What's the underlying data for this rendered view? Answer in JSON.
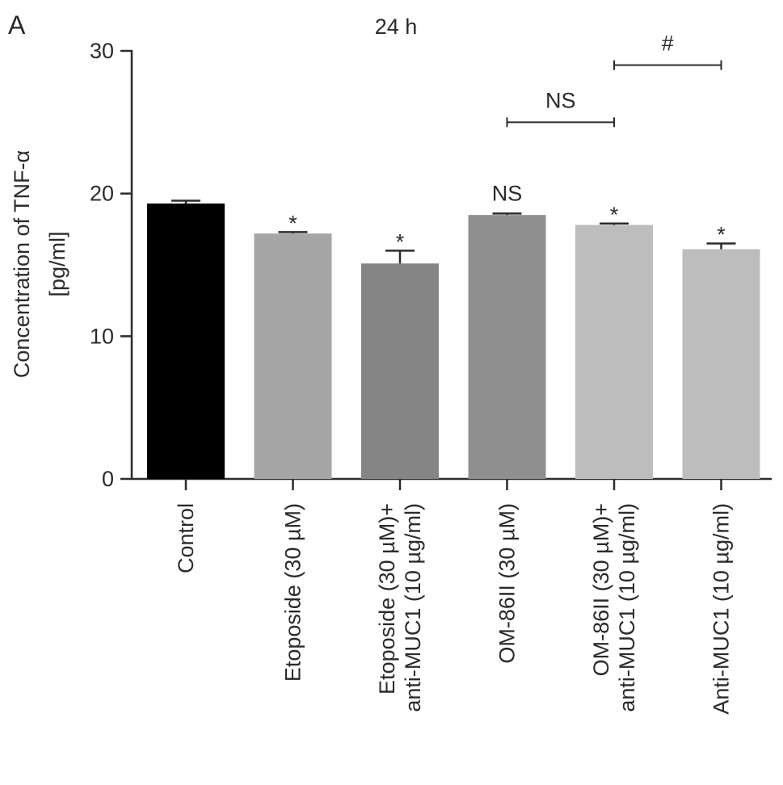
{
  "panel_label": "A",
  "chart_data": {
    "type": "bar",
    "title": "24 h",
    "ylabel_line1": "Concentration of TNF-α",
    "ylabel_line2": "[pg/ml]",
    "xlabel": "",
    "ylim": [
      0,
      30
    ],
    "yticks": [
      0,
      10,
      20,
      30
    ],
    "categories": [
      [
        "Control"
      ],
      [
        "Etoposide (30 µM)"
      ],
      [
        "Etoposide (30 µM)+",
        "anti-MUC1 (10 µg/ml)"
      ],
      [
        "OM-86II (30 µM)"
      ],
      [
        "OM-86II (30 µM)+",
        "anti-MUC1 (10 µg/ml)"
      ],
      [
        "Anti-MUC1 (10 µg/ml)"
      ]
    ],
    "values": [
      19.3,
      17.2,
      15.1,
      18.5,
      17.8,
      16.1
    ],
    "errors": [
      0.2,
      0.1,
      0.9,
      0.1,
      0.1,
      0.4
    ],
    "bar_colors": [
      "#000000",
      "#a6a6a6",
      "#858585",
      "#8f8f8f",
      "#bdbdbd",
      "#bdbdbd"
    ],
    "annotations": [
      "",
      "*",
      "*",
      "NS",
      "*",
      "*"
    ],
    "comparisons": [
      {
        "from": 3,
        "to": 4,
        "y": 25,
        "label": "NS"
      },
      {
        "from": 4,
        "to": 5,
        "y": 29,
        "label": "#"
      }
    ],
    "grid": false,
    "legend": "none"
  }
}
